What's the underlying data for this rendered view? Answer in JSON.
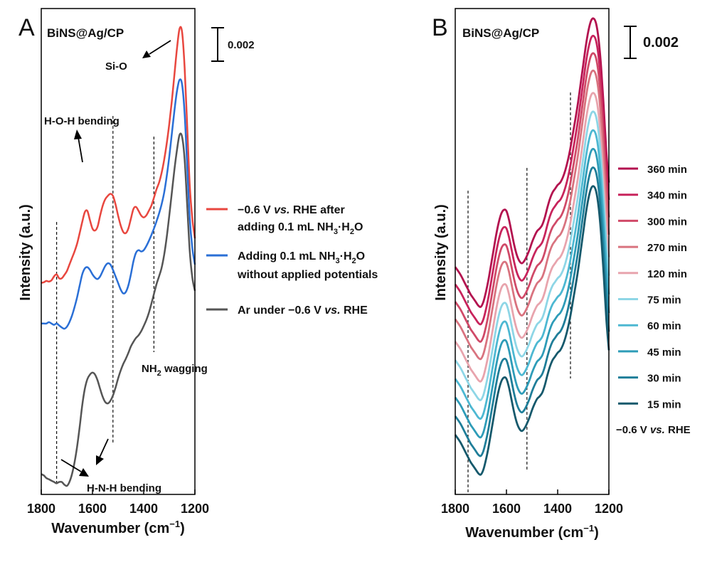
{
  "chart_data": [
    {
      "type": "line",
      "panel_letter": "A",
      "panel_label": "BiNS@Ag/CP",
      "xlabel_main": "Wavenumber (cm",
      "xlabel_sup": "−1",
      "xlabel_end": ")",
      "ylabel": "Intensity (a.u.)",
      "xlim": [
        1800,
        1200
      ],
      "xticks": [
        "1800",
        "1600",
        "1400",
        "1200"
      ],
      "scale_bar_label": "0.002",
      "reference_lines_x": [
        1740,
        1520,
        1360
      ],
      "annotations": {
        "si_o": "Si-O",
        "hoh": "H-O-H bending",
        "nh2_main": "NH",
        "nh2_sub": "2",
        "nh2_end": " wagging",
        "hnh": "H-N-H bending"
      },
      "series": [
        {
          "color": "#e8473f",
          "legend_line1": "−0.6 V ",
          "legend_line1_italic": "vs.",
          "legend_line1_end": " RHE after",
          "legend_line2_pre": "adding 0.1 mL NH",
          "legend_line2_sub1": "3",
          "legend_line2_mid": "·H",
          "legend_line2_sub2": "2",
          "legend_line2_end": "O",
          "points": [
            [
              1800,
              0.0302
            ],
            [
              1790,
              0.0303
            ],
            [
              1780,
              0.0305
            ],
            [
              1770,
              0.0304
            ],
            [
              1760,
              0.0306
            ],
            [
              1750,
              0.0312
            ],
            [
              1740,
              0.0315
            ],
            [
              1730,
              0.0309
            ],
            [
              1720,
              0.0309
            ],
            [
              1710,
              0.0314
            ],
            [
              1700,
              0.032
            ],
            [
              1690,
              0.033
            ],
            [
              1680,
              0.034
            ],
            [
              1670,
              0.035
            ],
            [
              1660,
              0.0362
            ],
            [
              1650,
              0.0378
            ],
            [
              1640,
              0.0395
            ],
            [
              1630,
              0.041
            ],
            [
              1620,
              0.0412
            ],
            [
              1610,
              0.0398
            ],
            [
              1600,
              0.0385
            ],
            [
              1590,
              0.0382
            ],
            [
              1580,
              0.0388
            ],
            [
              1570,
              0.0405
            ],
            [
              1560,
              0.042
            ],
            [
              1550,
              0.043
            ],
            [
              1540,
              0.0435
            ],
            [
              1530,
              0.0438
            ],
            [
              1520,
              0.0435
            ],
            [
              1510,
              0.0422
            ],
            [
              1500,
              0.0405
            ],
            [
              1490,
              0.039
            ],
            [
              1480,
              0.038
            ],
            [
              1470,
              0.0378
            ],
            [
              1460,
              0.0385
            ],
            [
              1450,
              0.04
            ],
            [
              1440,
              0.0415
            ],
            [
              1430,
              0.0418
            ],
            [
              1420,
              0.0412
            ],
            [
              1410,
              0.0405
            ],
            [
              1400,
              0.0402
            ],
            [
              1390,
              0.0405
            ],
            [
              1380,
              0.0412
            ],
            [
              1370,
              0.042
            ],
            [
              1360,
              0.0432
            ],
            [
              1350,
              0.0445
            ],
            [
              1340,
              0.0455
            ],
            [
              1330,
              0.047
            ],
            [
              1320,
              0.049
            ],
            [
              1310,
              0.0515
            ],
            [
              1300,
              0.0545
            ],
            [
              1290,
              0.058
            ],
            [
              1280,
              0.062
            ],
            [
              1270,
              0.066
            ],
            [
              1260,
              0.069
            ],
            [
              1250,
              0.0685
            ],
            [
              1240,
              0.063
            ],
            [
              1230,
              0.054
            ],
            [
              1220,
              0.045
            ],
            [
              1210,
              0.04
            ],
            [
              1200,
              0.037
            ]
          ]
        },
        {
          "color": "#2a6fd6",
          "legend_line1": "Adding 0.1 mL NH",
          "legend_line1_sub1": "3",
          "legend_line1_mid": "·H",
          "legend_line1_sub2": "2",
          "legend_line1_end": "O",
          "legend_line2": "without applied potentials",
          "points": [
            [
              1800,
              0.024
            ],
            [
              1790,
              0.024
            ],
            [
              1780,
              0.024
            ],
            [
              1770,
              0.0242
            ],
            [
              1760,
              0.024
            ],
            [
              1750,
              0.0238
            ],
            [
              1740,
              0.024
            ],
            [
              1730,
              0.0237
            ],
            [
              1720,
              0.0234
            ],
            [
              1710,
              0.0232
            ],
            [
              1700,
              0.0235
            ],
            [
              1690,
              0.0242
            ],
            [
              1680,
              0.0252
            ],
            [
              1670,
              0.0265
            ],
            [
              1660,
              0.028
            ],
            [
              1650,
              0.0298
            ],
            [
              1640,
              0.0315
            ],
            [
              1630,
              0.0324
            ],
            [
              1620,
              0.0326
            ],
            [
              1610,
              0.0322
            ],
            [
              1600,
              0.0315
            ],
            [
              1590,
              0.031
            ],
            [
              1580,
              0.0308
            ],
            [
              1570,
              0.0312
            ],
            [
              1560,
              0.032
            ],
            [
              1550,
              0.0328
            ],
            [
              1540,
              0.0332
            ],
            [
              1530,
              0.033
            ],
            [
              1520,
              0.0322
            ],
            [
              1510,
              0.0312
            ],
            [
              1500,
              0.0302
            ],
            [
              1490,
              0.0292
            ],
            [
              1480,
              0.0286
            ],
            [
              1470,
              0.0288
            ],
            [
              1460,
              0.0298
            ],
            [
              1450,
              0.0315
            ],
            [
              1440,
              0.0335
            ],
            [
              1430,
              0.0348
            ],
            [
              1420,
              0.0352
            ],
            [
              1410,
              0.035
            ],
            [
              1400,
              0.0352
            ],
            [
              1390,
              0.0358
            ],
            [
              1380,
              0.0366
            ],
            [
              1370,
              0.0375
            ],
            [
              1360,
              0.0385
            ],
            [
              1350,
              0.0396
            ],
            [
              1340,
              0.0408
            ],
            [
              1330,
              0.0422
            ],
            [
              1320,
              0.044
            ],
            [
              1310,
              0.0465
            ],
            [
              1300,
              0.0495
            ],
            [
              1290,
              0.053
            ],
            [
              1280,
              0.0565
            ],
            [
              1270,
              0.0595
            ],
            [
              1260,
              0.0612
            ],
            [
              1250,
              0.0605
            ],
            [
              1240,
              0.056
            ],
            [
              1230,
              0.048
            ],
            [
              1220,
              0.04
            ],
            [
              1210,
              0.0355
            ],
            [
              1200,
              0.033
            ]
          ]
        },
        {
          "color": "#555555",
          "legend_line1": "Ar under −0.6 V ",
          "legend_line1_italic": "vs.",
          "legend_line1_end": " RHE",
          "points": [
            [
              1800,
              0.001
            ],
            [
              1790,
              0.0008
            ],
            [
              1780,
              0.0004
            ],
            [
              1770,
              0.0002
            ],
            [
              1760,
              0.0
            ],
            [
              1750,
              -0.0002
            ],
            [
              1740,
              -0.0004
            ],
            [
              1730,
              -0.0002
            ],
            [
              1720,
              -0.0002
            ],
            [
              1710,
              -0.0006
            ],
            [
              1700,
              -0.0008
            ],
            [
              1690,
              -0.0002
            ],
            [
              1680,
              0.001
            ],
            [
              1670,
              0.0028
            ],
            [
              1660,
              0.0052
            ],
            [
              1650,
              0.0082
            ],
            [
              1640,
              0.0115
            ],
            [
              1630,
              0.014
            ],
            [
              1620,
              0.0155
            ],
            [
              1610,
              0.0162
            ],
            [
              1600,
              0.0165
            ],
            [
              1590,
              0.0162
            ],
            [
              1580,
              0.0153
            ],
            [
              1570,
              0.014
            ],
            [
              1560,
              0.0128
            ],
            [
              1550,
              0.012
            ],
            [
              1540,
              0.0118
            ],
            [
              1530,
              0.0122
            ],
            [
              1520,
              0.013
            ],
            [
              1510,
              0.0142
            ],
            [
              1500,
              0.0156
            ],
            [
              1490,
              0.0168
            ],
            [
              1480,
              0.0178
            ],
            [
              1470,
              0.0186
            ],
            [
              1460,
              0.0195
            ],
            [
              1450,
              0.0205
            ],
            [
              1440,
              0.0212
            ],
            [
              1430,
              0.0218
            ],
            [
              1420,
              0.0222
            ],
            [
              1410,
              0.0228
            ],
            [
              1400,
              0.0236
            ],
            [
              1390,
              0.0245
            ],
            [
              1380,
              0.0256
            ],
            [
              1370,
              0.027
            ],
            [
              1360,
              0.0285
            ],
            [
              1350,
              0.03
            ],
            [
              1340,
              0.0312
            ],
            [
              1330,
              0.0325
            ],
            [
              1320,
              0.0345
            ],
            [
              1310,
              0.0372
            ],
            [
              1300,
              0.0405
            ],
            [
              1290,
              0.044
            ],
            [
              1280,
              0.0475
            ],
            [
              1270,
              0.0505
            ],
            [
              1260,
              0.0528
            ],
            [
              1250,
              0.0525
            ],
            [
              1240,
              0.049
            ],
            [
              1230,
              0.042
            ],
            [
              1220,
              0.035
            ],
            [
              1210,
              0.031
            ],
            [
              1200,
              0.029
            ]
          ]
        }
      ]
    },
    {
      "type": "line",
      "panel_letter": "B",
      "panel_label": "BiNS@Ag/CP",
      "xlabel_main": "Wavenumber (cm",
      "xlabel_sup": "−1",
      "xlabel_end": ")",
      "ylabel": "Intensity (a.u.)",
      "xlim": [
        1800,
        1200
      ],
      "xticks": [
        "1800",
        "1600",
        "1400",
        "1200"
      ],
      "scale_bar_label": "0.002",
      "reference_lines_x": [
        1750,
        1520,
        1350
      ],
      "legend_footer_pre": "−0.6 V ",
      "legend_footer_italic": "vs.",
      "legend_footer_end": " RHE",
      "template_points": [
        [
          1800,
          0.0022
        ],
        [
          1780,
          0.0016
        ],
        [
          1760,
          0.0008
        ],
        [
          1750,
          0.0004
        ],
        [
          1740,
          0.0
        ],
        [
          1730,
          -0.0003
        ],
        [
          1720,
          -0.0006
        ],
        [
          1710,
          -0.0009
        ],
        [
          1700,
          -0.001
        ],
        [
          1690,
          -0.0006
        ],
        [
          1680,
          0.0002
        ],
        [
          1670,
          0.0012
        ],
        [
          1660,
          0.0024
        ],
        [
          1650,
          0.0036
        ],
        [
          1640,
          0.0048
        ],
        [
          1630,
          0.0058
        ],
        [
          1620,
          0.0065
        ],
        [
          1610,
          0.0068
        ],
        [
          1600,
          0.0067
        ],
        [
          1590,
          0.006
        ],
        [
          1580,
          0.005
        ],
        [
          1570,
          0.004
        ],
        [
          1560,
          0.0032
        ],
        [
          1550,
          0.0027
        ],
        [
          1540,
          0.0025
        ],
        [
          1530,
          0.0027
        ],
        [
          1520,
          0.0031
        ],
        [
          1510,
          0.0036
        ],
        [
          1500,
          0.0042
        ],
        [
          1490,
          0.0047
        ],
        [
          1480,
          0.0051
        ],
        [
          1470,
          0.0053
        ],
        [
          1460,
          0.0056
        ],
        [
          1450,
          0.0062
        ],
        [
          1440,
          0.007
        ],
        [
          1430,
          0.0077
        ],
        [
          1420,
          0.0082
        ],
        [
          1410,
          0.0085
        ],
        [
          1400,
          0.0088
        ],
        [
          1390,
          0.009
        ],
        [
          1380,
          0.0094
        ],
        [
          1370,
          0.01
        ],
        [
          1360,
          0.0108
        ],
        [
          1350,
          0.0118
        ],
        [
          1340,
          0.013
        ],
        [
          1330,
          0.0142
        ],
        [
          1320,
          0.0155
        ],
        [
          1310,
          0.017
        ],
        [
          1300,
          0.0185
        ],
        [
          1290,
          0.02
        ],
        [
          1280,
          0.0212
        ],
        [
          1270,
          0.022
        ],
        [
          1260,
          0.0222
        ],
        [
          1250,
          0.0218
        ],
        [
          1240,
          0.0205
        ],
        [
          1230,
          0.0182
        ],
        [
          1220,
          0.015
        ],
        [
          1210,
          0.0115
        ],
        [
          1200,
          0.009
        ]
      ],
      "series": [
        {
          "name": "360 min",
          "color": "#b3124f",
          "offset": 0.0153
        },
        {
          "name": "340 min",
          "color": "#c8245c",
          "offset": 0.0139
        },
        {
          "name": "300 min",
          "color": "#d04a68",
          "offset": 0.0125
        },
        {
          "name": "270 min",
          "color": "#d9737f",
          "offset": 0.0111
        },
        {
          "name": "120 min",
          "color": "#e8a4ad",
          "offset": 0.0093
        },
        {
          "name": "75 min",
          "color": "#8ed6e6",
          "offset": 0.0078
        },
        {
          "name": "60 min",
          "color": "#4db8d2",
          "offset": 0.0063
        },
        {
          "name": "45 min",
          "color": "#2e9cb8",
          "offset": 0.0048
        },
        {
          "name": "30 min",
          "color": "#1f7e99",
          "offset": 0.0033
        },
        {
          "name": "15 min",
          "color": "#16596c",
          "offset": 0.0018
        }
      ]
    }
  ]
}
